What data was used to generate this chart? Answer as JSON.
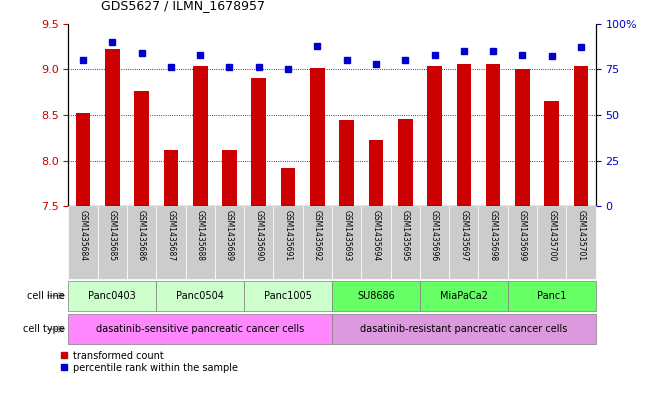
{
  "title": "GDS5627 / ILMN_1678957",
  "samples": [
    "GSM1435684",
    "GSM1435685",
    "GSM1435686",
    "GSM1435687",
    "GSM1435688",
    "GSM1435689",
    "GSM1435690",
    "GSM1435691",
    "GSM1435692",
    "GSM1435693",
    "GSM1435694",
    "GSM1435695",
    "GSM1435696",
    "GSM1435697",
    "GSM1435698",
    "GSM1435699",
    "GSM1435700",
    "GSM1435701"
  ],
  "transformed_count": [
    8.52,
    9.22,
    8.76,
    8.12,
    9.04,
    8.12,
    8.9,
    7.92,
    9.01,
    8.45,
    8.23,
    8.46,
    9.04,
    9.06,
    9.06,
    9.0,
    8.65,
    9.04
  ],
  "percentile_rank": [
    80,
    90,
    84,
    76,
    83,
    76,
    76,
    75,
    88,
    80,
    78,
    80,
    83,
    85,
    85,
    83,
    82,
    87
  ],
  "ylim_left": [
    7.5,
    9.5
  ],
  "ylim_right": [
    0,
    100
  ],
  "yticks_left": [
    7.5,
    8.0,
    8.5,
    9.0,
    9.5
  ],
  "yticks_right": [
    0,
    25,
    50,
    75,
    100
  ],
  "ytick_labels_right": [
    "0",
    "25",
    "50",
    "75",
    "100%"
  ],
  "grid_values": [
    8.0,
    8.5,
    9.0
  ],
  "bar_color": "#cc0000",
  "dot_color": "#0000cc",
  "cell_lines": [
    {
      "name": "Panc0403",
      "start": 0,
      "end": 2,
      "color": "#ccffcc"
    },
    {
      "name": "Panc0504",
      "start": 3,
      "end": 5,
      "color": "#ccffcc"
    },
    {
      "name": "Panc1005",
      "start": 6,
      "end": 8,
      "color": "#ccffcc"
    },
    {
      "name": "SU8686",
      "start": 9,
      "end": 11,
      "color": "#66ff66"
    },
    {
      "name": "MiaPaCa2",
      "start": 12,
      "end": 14,
      "color": "#66ff66"
    },
    {
      "name": "Panc1",
      "start": 15,
      "end": 17,
      "color": "#66ff66"
    }
  ],
  "cell_types": [
    {
      "name": "dasatinib-sensitive pancreatic cancer cells",
      "start": 0,
      "end": 8,
      "color": "#ff88ff"
    },
    {
      "name": "dasatinib-resistant pancreatic cancer cells",
      "start": 9,
      "end": 17,
      "color": "#dd99dd"
    }
  ],
  "legend_bar_label": "transformed count",
  "legend_dot_label": "percentile rank within the sample",
  "bar_color_label": "#cc0000",
  "dot_color_label": "#0000cc",
  "background_color": "#ffffff",
  "xtick_bg_color": "#cccccc"
}
